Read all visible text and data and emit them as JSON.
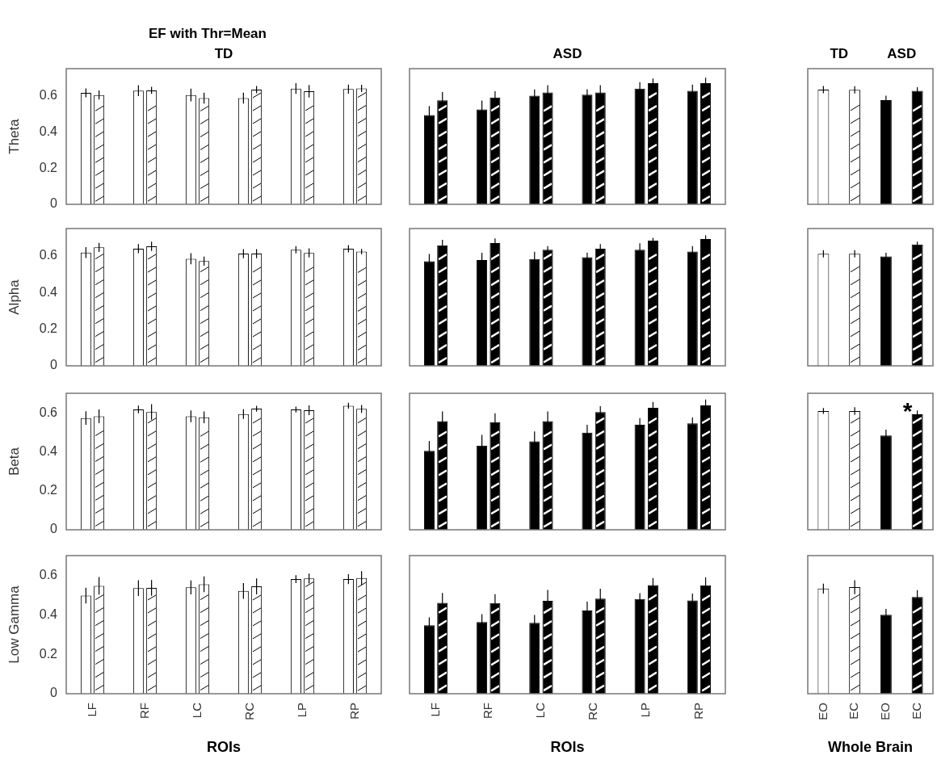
{
  "chart_data": [
    {
      "type": "bar",
      "title": "EF with Thr=Mean",
      "subtitle": "TD",
      "ylabel": "Theta",
      "categories": [
        "LF",
        "RF",
        "LC",
        "RC",
        "LP",
        "RP"
      ],
      "ylim": [
        0,
        0.75
      ],
      "yticks": [
        0,
        0.2,
        0.4,
        0.6
      ],
      "tick_labels": "y",
      "series": [
        {
          "color": "#ffffff",
          "values": [
            0.616,
            0.628,
            0.604,
            0.587,
            0.64,
            0.637
          ],
          "errors": [
            0.025,
            0.03,
            0.035,
            0.03,
            0.03,
            0.025
          ]
        },
        {
          "color": "#ffffff",
          "values": [
            0.604,
            0.63,
            0.587,
            0.634,
            0.625,
            0.641
          ],
          "errors": [
            0.025,
            0.02,
            0.03,
            0.02,
            0.035,
            0.02
          ]
        }
      ]
    },
    {
      "type": "bar",
      "subtitle": "ASD",
      "categories": [
        "LF",
        "RF",
        "LC",
        "RC",
        "LP",
        "RP"
      ],
      "ylim": [
        0,
        0.75
      ],
      "yticks": [
        0,
        0.2,
        0.4,
        0.6
      ],
      "tick_labels": false,
      "series": [
        {
          "color": "#000000",
          "values": [
            0.493,
            0.524,
            0.6,
            0.606,
            0.64,
            0.627
          ],
          "errors": [
            0.05,
            0.05,
            0.035,
            0.03,
            0.035,
            0.035
          ]
        },
        {
          "color": "#000000",
          "values": [
            0.575,
            0.59,
            0.618,
            0.618,
            0.67,
            0.67
          ],
          "errors": [
            0.045,
            0.035,
            0.04,
            0.04,
            0.025,
            0.03
          ]
        }
      ]
    },
    {
      "type": "bar",
      "categories": [
        "EO",
        "EC",
        "EO",
        "EC"
      ],
      "ylim": [
        0,
        0.75
      ],
      "yticks": [
        0,
        0.2,
        0.4,
        0.6
      ],
      "tick_labels": false,
      "annotations": [
        "TD",
        "ASD"
      ],
      "colors": [
        "#ffffff",
        "#ffffff",
        "#000000",
        "#000000"
      ],
      "values": [
        0.634,
        0.633,
        0.576,
        0.627
      ],
      "errors": [
        0.02,
        0.02,
        0.025,
        0.02
      ]
    },
    {
      "type": "bar",
      "ylabel": "Alpha",
      "categories": [
        "LF",
        "RF",
        "LC",
        "RC",
        "LP",
        "RP"
      ],
      "ylim": [
        0,
        0.75
      ],
      "yticks": [
        0,
        0.2,
        0.4,
        0.6
      ],
      "tick_labels": "y",
      "series": [
        {
          "color": "#ffffff",
          "values": [
            0.619,
            0.64,
            0.585,
            0.613,
            0.634,
            0.64
          ],
          "errors": [
            0.03,
            0.025,
            0.03,
            0.025,
            0.02,
            0.02
          ]
        },
        {
          "color": "#ffffff",
          "values": [
            0.647,
            0.653,
            0.572,
            0.613,
            0.617,
            0.624
          ],
          "errors": [
            0.025,
            0.025,
            0.025,
            0.025,
            0.025,
            0.015
          ]
        }
      ]
    },
    {
      "type": "bar",
      "categories": [
        "LF",
        "RF",
        "LC",
        "RC",
        "LP",
        "RP"
      ],
      "ylim": [
        0,
        0.75
      ],
      "yticks": [
        0,
        0.2,
        0.4,
        0.6
      ],
      "tick_labels": false,
      "series": [
        {
          "color": "#000000",
          "values": [
            0.571,
            0.578,
            0.583,
            0.593,
            0.634,
            0.624
          ],
          "errors": [
            0.04,
            0.04,
            0.04,
            0.025,
            0.035,
            0.03
          ]
        },
        {
          "color": "#000000",
          "values": [
            0.658,
            0.671,
            0.634,
            0.64,
            0.684,
            0.693
          ],
          "errors": [
            0.03,
            0.025,
            0.02,
            0.025,
            0.015,
            0.02
          ]
        }
      ]
    },
    {
      "type": "bar",
      "categories": [
        "EO",
        "EC",
        "EO",
        "EC"
      ],
      "ylim": [
        0,
        0.75
      ],
      "yticks": [
        0,
        0.2,
        0.4,
        0.6
      ],
      "tick_labels": false,
      "colors": [
        "#ffffff",
        "#ffffff",
        "#000000",
        "#000000"
      ],
      "values": [
        0.612,
        0.612,
        0.598,
        0.663
      ],
      "errors": [
        0.02,
        0.02,
        0.02,
        0.015
      ]
    },
    {
      "type": "bar",
      "ylabel": "Beta",
      "categories": [
        "LF",
        "RF",
        "LC",
        "RC",
        "LP",
        "RP"
      ],
      "ylim": [
        0,
        0.7
      ],
      "yticks": [
        0,
        0.2,
        0.4,
        0.6
      ],
      "tick_labels": "y",
      "series": [
        {
          "color": "#ffffff",
          "values": [
            0.573,
            0.617,
            0.582,
            0.593,
            0.617,
            0.636
          ],
          "errors": [
            0.035,
            0.02,
            0.03,
            0.025,
            0.015,
            0.015
          ]
        },
        {
          "color": "#ffffff",
          "values": [
            0.582,
            0.604,
            0.577,
            0.621,
            0.613,
            0.62
          ],
          "errors": [
            0.035,
            0.04,
            0.03,
            0.015,
            0.025,
            0.02
          ]
        }
      ]
    },
    {
      "type": "bar",
      "categories": [
        "LF",
        "RF",
        "LC",
        "RC",
        "LP",
        "RP"
      ],
      "ylim": [
        0,
        0.7
      ],
      "yticks": [
        0,
        0.2,
        0.4,
        0.6
      ],
      "tick_labels": false,
      "series": [
        {
          "color": "#000000",
          "values": [
            0.405,
            0.432,
            0.454,
            0.498,
            0.538,
            0.546
          ],
          "errors": [
            0.05,
            0.055,
            0.05,
            0.04,
            0.035,
            0.03
          ]
        },
        {
          "color": "#000000",
          "values": [
            0.557,
            0.552,
            0.557,
            0.604,
            0.625,
            0.638
          ],
          "errors": [
            0.05,
            0.045,
            0.05,
            0.03,
            0.03,
            0.03
          ]
        }
      ]
    },
    {
      "type": "bar",
      "categories": [
        "EO",
        "EC",
        "EO",
        "EC"
      ],
      "ylim": [
        0,
        0.7
      ],
      "yticks": [
        0,
        0.2,
        0.4,
        0.6
      ],
      "tick_labels": false,
      "annotations": [
        {
          "text": "*",
          "x": "EC",
          "y": 0.635
        }
      ],
      "colors": [
        "#ffffff",
        "#ffffff",
        "#000000",
        "#000000"
      ],
      "values": [
        0.609,
        0.609,
        0.484,
        0.592
      ],
      "errors": [
        0.015,
        0.02,
        0.03,
        0.02
      ]
    },
    {
      "type": "bar",
      "ylabel": "Low Gamma",
      "xlabel": "ROIs",
      "categories": [
        "LF",
        "RF",
        "LC",
        "RC",
        "LP",
        "RP"
      ],
      "ylim": [
        0,
        0.7
      ],
      "yticks": [
        0,
        0.2,
        0.4,
        0.6
      ],
      "series": [
        {
          "color": "#ffffff",
          "values": [
            0.497,
            0.535,
            0.539,
            0.521,
            0.581,
            0.581
          ],
          "errors": [
            0.04,
            0.04,
            0.035,
            0.04,
            0.02,
            0.025
          ]
        },
        {
          "color": "#ffffff",
          "values": [
            0.547,
            0.536,
            0.555,
            0.544,
            0.584,
            0.586
          ],
          "errors": [
            0.045,
            0.04,
            0.04,
            0.04,
            0.025,
            0.035
          ]
        }
      ]
    },
    {
      "type": "bar",
      "xlabel": "ROIs",
      "categories": [
        "LF",
        "RF",
        "LC",
        "RC",
        "LP",
        "RP"
      ],
      "ylim": [
        0,
        0.7
      ],
      "yticks": [
        0,
        0.2,
        0.4,
        0.6
      ],
      "tick_labels": "x",
      "series": [
        {
          "color": "#000000",
          "values": [
            0.347,
            0.363,
            0.359,
            0.422,
            0.48,
            0.473
          ],
          "errors": [
            0.04,
            0.04,
            0.04,
            0.045,
            0.03,
            0.035
          ]
        },
        {
          "color": "#000000",
          "values": [
            0.461,
            0.46,
            0.471,
            0.482,
            0.551,
            0.55
          ],
          "errors": [
            0.05,
            0.045,
            0.055,
            0.05,
            0.035,
            0.04
          ]
        }
      ]
    },
    {
      "type": "bar",
      "xlabel": "Whole Brain",
      "categories": [
        "EO",
        "EC",
        "EO",
        "EC"
      ],
      "ylim": [
        0,
        0.7
      ],
      "yticks": [
        0,
        0.2,
        0.4,
        0.6
      ],
      "tick_labels": "x",
      "colors": [
        "#ffffff",
        "#ffffff",
        "#000000",
        "#000000"
      ],
      "values": [
        0.533,
        0.54,
        0.4,
        0.49
      ],
      "errors": [
        0.025,
        0.035,
        0.03,
        0.035
      ]
    }
  ]
}
